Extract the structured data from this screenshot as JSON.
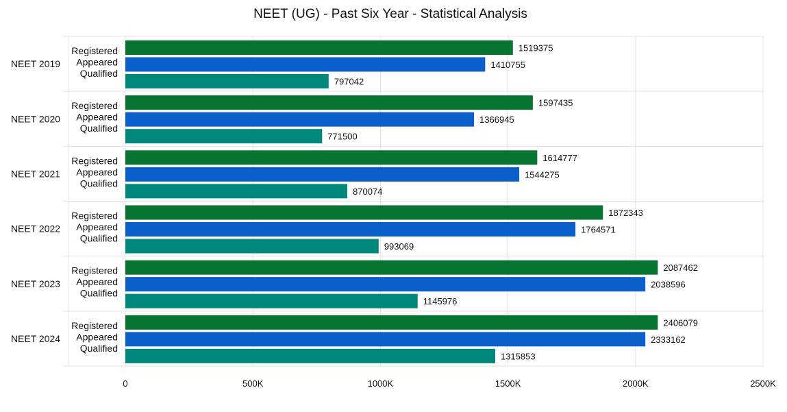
{
  "chart_data": {
    "type": "bar",
    "orientation": "horizontal",
    "title": "NEET (UG) - Past Six Year - Statistical Analysis",
    "groups": [
      "NEET 2019",
      "NEET 2020",
      "NEET 2021",
      "NEET 2022",
      "NEET 2023",
      "NEET 2024"
    ],
    "sub_labels": [
      "Registered",
      "Appeared",
      "Qualified"
    ],
    "series": [
      {
        "color": "#077331",
        "values": [
          1519375,
          1597435,
          1614777,
          1872343,
          2087462,
          2406079
        ]
      },
      {
        "color": "#0b5fca",
        "values": [
          1410755,
          1366945,
          1544275,
          1764571,
          2038596,
          2333162
        ]
      },
      {
        "color": "#00897b",
        "values": [
          797042,
          771500,
          870074,
          993069,
          1145976,
          1315853
        ]
      }
    ],
    "bar_lengths": [
      [
        1519375,
        1597435,
        1614777,
        1872343,
        2087462,
        2087462
      ],
      [
        1410755,
        1366945,
        1544275,
        1764571,
        2038596,
        2038596
      ],
      [
        797042,
        771500,
        870074,
        993069,
        1145976,
        1450000
      ]
    ],
    "xlim": [
      0,
      2500000
    ],
    "x_ticks": [
      0,
      500000,
      1000000,
      1500000,
      2000000,
      2500000
    ],
    "x_tick_labels": [
      "0",
      "500K",
      "1000K",
      "1500K",
      "2000K",
      "2500K"
    ],
    "grid": true
  }
}
